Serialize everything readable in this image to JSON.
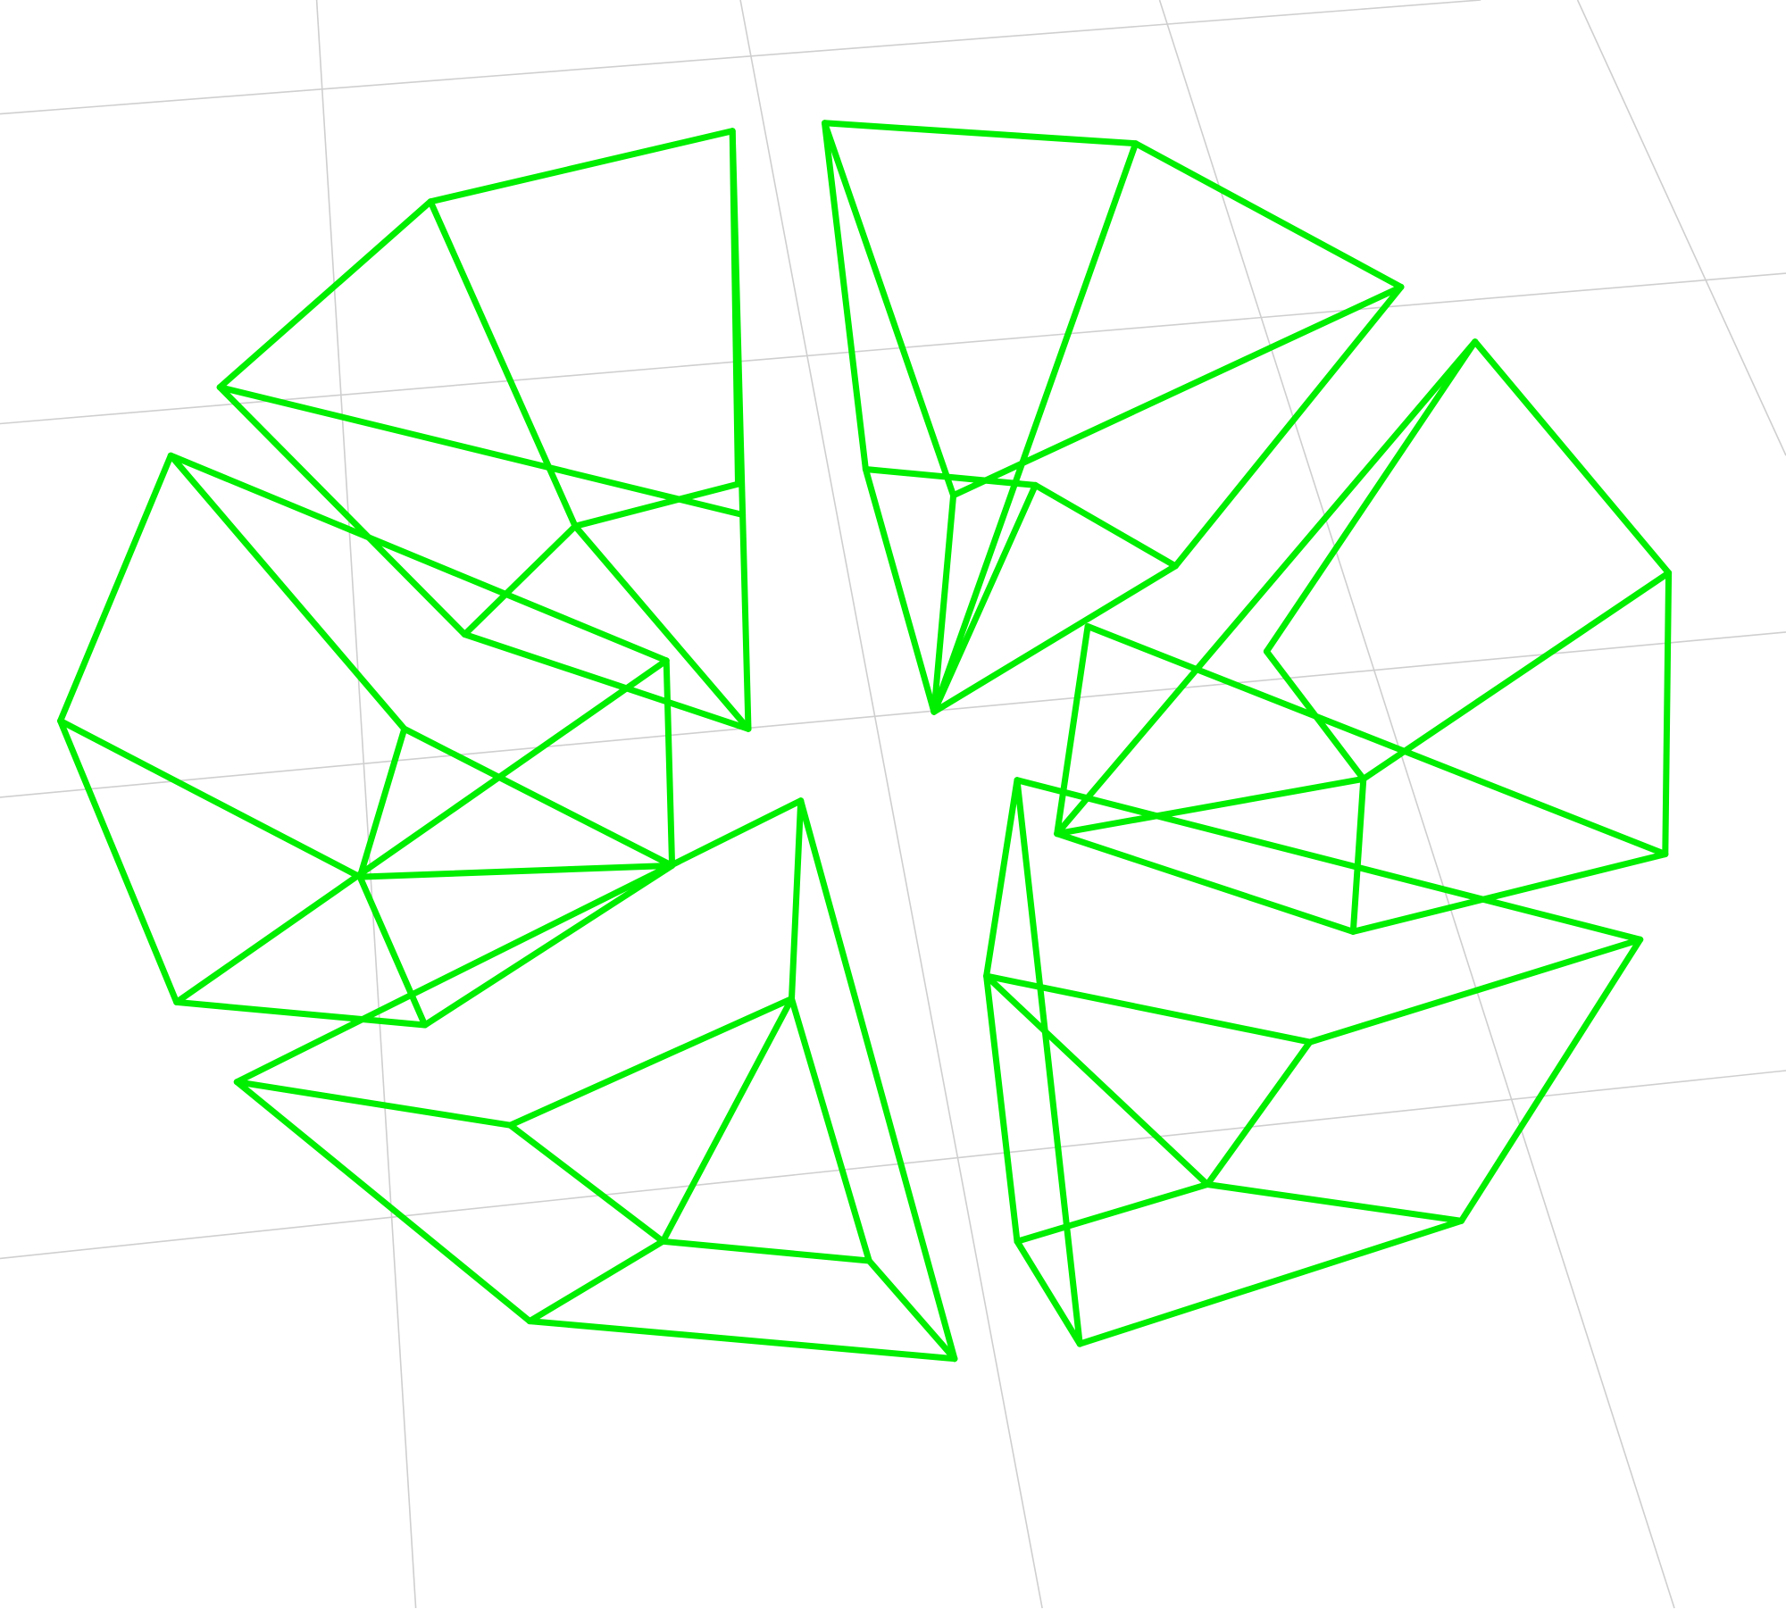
{
  "scene": {
    "background_color": "#ffffff",
    "grid_color": "#cfcfcf",
    "wireframe_color": "#00ee00",
    "object_count": 6,
    "objects": [
      {
        "name": "wireframe-object-top-left"
      },
      {
        "name": "wireframe-object-top-right"
      },
      {
        "name": "wireframe-object-middle-left"
      },
      {
        "name": "wireframe-object-middle-right"
      },
      {
        "name": "wireframe-object-bottom-left"
      },
      {
        "name": "wireframe-object-bottom-right"
      }
    ]
  }
}
